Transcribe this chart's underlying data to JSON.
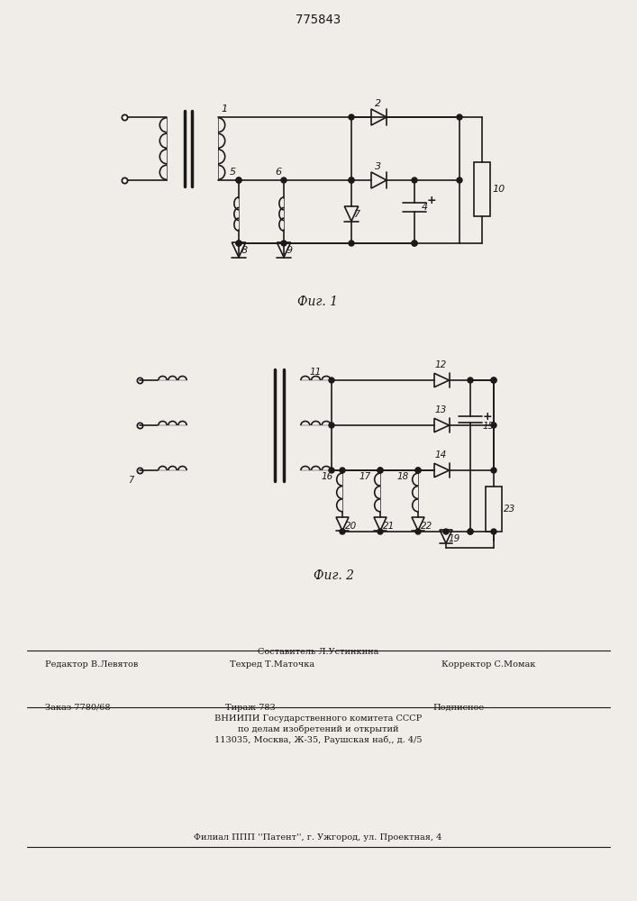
{
  "patent_number": "775843",
  "fig1_label": "Фиг. 1",
  "fig2_label": "Фиг. 2",
  "bg_color": "#f0ede8",
  "line_color": "#1a1a1a",
  "text_color": "#1a1a1a"
}
